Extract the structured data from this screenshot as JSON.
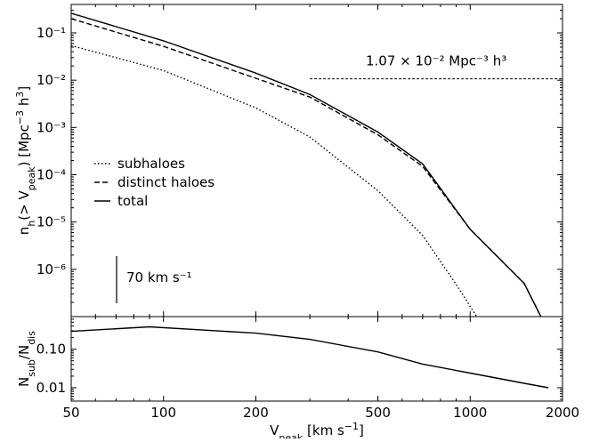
{
  "chart_data": [
    {
      "type": "line",
      "log_x": true,
      "log_y": true,
      "ylabel": [
        {
          "text": "n"
        },
        {
          "text": "h",
          "shift": "sub"
        },
        {
          "text": "(> V"
        },
        {
          "text": "peak",
          "shift": "sub"
        },
        {
          "text": ") [Mpc"
        },
        {
          "text": "−3",
          "shift": "super"
        },
        {
          "text": " h"
        },
        {
          "text": "3",
          "shift": "super"
        },
        {
          "text": "]"
        }
      ],
      "xlim": [
        50,
        2000
      ],
      "ylim": [
        1e-07,
        0.4
      ],
      "yticks": [
        {
          "value": 0.1,
          "label": "10⁻¹"
        },
        {
          "value": 0.01,
          "label": "10⁻²"
        },
        {
          "value": 0.001,
          "label": "10⁻³"
        },
        {
          "value": 0.0001,
          "label": "10⁻⁴"
        },
        {
          "value": 1e-05,
          "label": "10⁻⁵"
        },
        {
          "value": 1e-06,
          "label": "10⁻⁶"
        }
      ],
      "legend": "center left",
      "series": [
        {
          "name": "subhaloes",
          "color": "#000000",
          "dash": "dotted",
          "x": [
            50,
            100,
            200,
            300,
            500,
            700,
            900,
            1050
          ],
          "values": [
            0.054,
            0.016,
            0.0026,
            0.00063,
            4.6e-05,
            5.2e-06,
            4.8e-07,
            1e-07
          ]
        },
        {
          "name": "distinct haloes",
          "color": "#000000",
          "dash": "dashed",
          "x": [
            50,
            100,
            200,
            300,
            500,
            700,
            1000,
            1500,
            1700
          ],
          "values": [
            0.2,
            0.052,
            0.011,
            0.0044,
            0.0007,
            0.00015,
            7e-06,
            5e-07,
            1e-07
          ]
        },
        {
          "name": "total",
          "color": "#000000",
          "dash": "solid",
          "x": [
            50,
            100,
            200,
            300,
            500,
            700,
            1000,
            1500,
            1700
          ],
          "values": [
            0.26,
            0.068,
            0.0141,
            0.005,
            0.0008,
            0.00017,
            7e-06,
            5e-07,
            1e-07
          ]
        }
      ],
      "hline": {
        "value": 0.0107,
        "xmin": 300,
        "label": "1.07 × 10⁻² Mpc⁻³ h³"
      },
      "annotation": "70 km s⁻¹"
    },
    {
      "type": "line",
      "log_x": true,
      "log_y": true,
      "xlabel": [
        {
          "text": "V"
        },
        {
          "text": "peak",
          "shift": "sub"
        },
        {
          "text": " [km s"
        },
        {
          "text": "−1",
          "shift": "super"
        },
        {
          "text": "]"
        }
      ],
      "ylabel": [
        {
          "text": "N"
        },
        {
          "text": "sub",
          "shift": "sub"
        },
        {
          "text": "/N"
        },
        {
          "text": "dis",
          "shift": "sub"
        }
      ],
      "xlim": [
        50,
        2000
      ],
      "ylim": [
        0.0045,
        0.7
      ],
      "xticks": [
        50,
        100,
        200,
        500,
        1000,
        2000
      ],
      "yticks": [
        {
          "value": 0.1,
          "label": "0.10"
        },
        {
          "value": 0.01,
          "label": "0.01"
        }
      ],
      "series": [
        {
          "color": "#000000",
          "dash": "solid",
          "x": [
            50,
            90,
            200,
            300,
            500,
            700,
            1000,
            1500,
            1800
          ],
          "values": [
            0.29,
            0.38,
            0.26,
            0.18,
            0.085,
            0.041,
            0.024,
            0.013,
            0.01
          ]
        }
      ]
    }
  ]
}
